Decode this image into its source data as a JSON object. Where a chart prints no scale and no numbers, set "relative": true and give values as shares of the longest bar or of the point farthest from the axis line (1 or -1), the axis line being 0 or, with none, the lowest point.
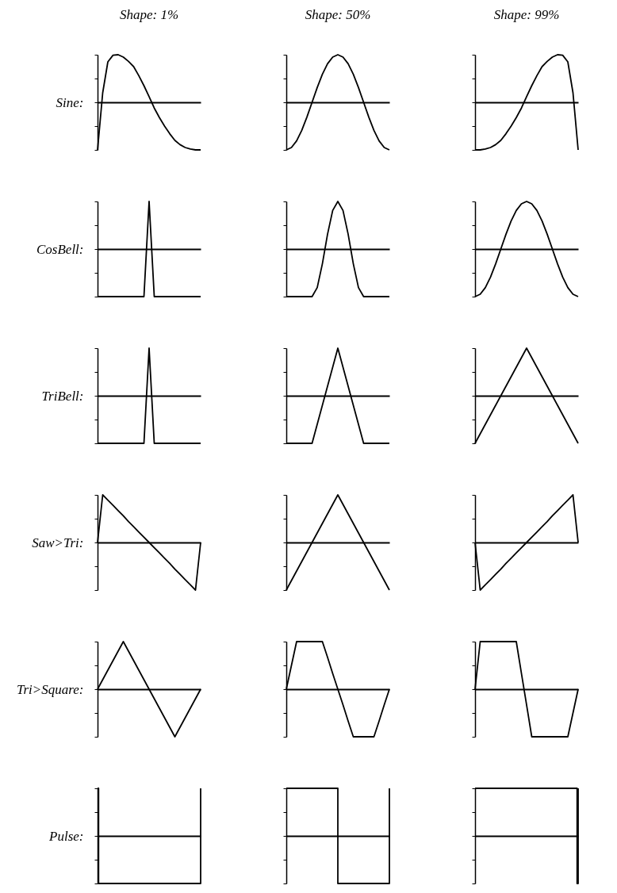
{
  "chart_data": [
    {
      "type": "line",
      "relative": true,
      "title": "Shape: 1%",
      "ylabel": "Sine:",
      "color": "#000000",
      "categories": [
        null,
        null,
        null,
        null,
        null,
        null,
        null,
        null,
        null,
        null,
        null,
        null,
        null,
        null,
        null,
        null,
        null,
        null,
        null,
        null,
        null
      ],
      "values": [
        -1,
        0.2,
        0.85,
        0.99,
        1,
        0.95,
        0.86,
        0.75,
        0.56,
        0.35,
        0.12,
        -0.12,
        -0.32,
        -0.5,
        -0.66,
        -0.8,
        -0.89,
        -0.95,
        -0.98,
        -1,
        -1
      ]
    },
    {
      "type": "line",
      "relative": true,
      "title": "Shape: 50%",
      "color": "#000000",
      "categories": [
        null,
        null,
        null,
        null,
        null,
        null,
        null,
        null,
        null,
        null,
        null,
        null,
        null,
        null,
        null,
        null,
        null,
        null,
        null,
        null,
        null
      ],
      "values": [
        -1,
        -0.95,
        -0.81,
        -0.59,
        -0.31,
        0,
        0.31,
        0.59,
        0.81,
        0.95,
        1,
        0.95,
        0.81,
        0.59,
        0.31,
        0,
        -0.31,
        -0.59,
        -0.81,
        -0.95,
        -1
      ]
    },
    {
      "type": "line",
      "relative": true,
      "title": "Shape: 99%",
      "color": "#000000",
      "categories": [
        null,
        null,
        null,
        null,
        null,
        null,
        null,
        null,
        null,
        null,
        null,
        null,
        null,
        null,
        null,
        null,
        null,
        null,
        null,
        null,
        null
      ],
      "values": [
        -1,
        -1,
        -0.98,
        -0.95,
        -0.89,
        -0.8,
        -0.66,
        -0.5,
        -0.32,
        -0.12,
        0.12,
        0.35,
        0.56,
        0.75,
        0.86,
        0.95,
        1,
        0.99,
        0.85,
        0.2,
        -1
      ]
    },
    {
      "type": "line",
      "relative": true,
      "ylabel": "CosBell:",
      "color": "#000000",
      "categories": [
        null,
        null,
        null,
        null,
        null,
        null,
        null,
        null,
        null,
        null,
        null,
        null,
        null,
        null,
        null,
        null,
        null,
        null,
        null,
        null,
        null
      ],
      "values": [
        -1,
        -1,
        -1,
        -1,
        -1,
        -1,
        -1,
        -1,
        -1,
        -1,
        1,
        -1,
        -1,
        -1,
        -1,
        -1,
        -1,
        -1,
        -1,
        -1,
        -1
      ]
    },
    {
      "type": "line",
      "relative": true,
      "color": "#000000",
      "categories": [
        null,
        null,
        null,
        null,
        null,
        null,
        null,
        null,
        null,
        null,
        null,
        null,
        null,
        null,
        null,
        null,
        null,
        null,
        null,
        null,
        null
      ],
      "values": [
        -1,
        -1,
        -1,
        -1,
        -1,
        -1,
        -0.81,
        -0.31,
        0.31,
        0.81,
        1,
        0.81,
        0.31,
        -0.31,
        -0.81,
        -1,
        -1,
        -1,
        -1,
        -1,
        -1
      ]
    },
    {
      "type": "line",
      "relative": true,
      "color": "#000000",
      "categories": [
        null,
        null,
        null,
        null,
        null,
        null,
        null,
        null,
        null,
        null,
        null,
        null,
        null,
        null,
        null,
        null,
        null,
        null,
        null,
        null,
        null
      ],
      "values": [
        -1,
        -0.95,
        -0.81,
        -0.59,
        -0.31,
        0,
        0.31,
        0.59,
        0.81,
        0.95,
        1,
        0.95,
        0.81,
        0.59,
        0.31,
        0,
        -0.31,
        -0.59,
        -0.81,
        -0.95,
        -1
      ]
    },
    {
      "type": "line",
      "relative": true,
      "ylabel": "TriBell:",
      "color": "#000000",
      "categories": [
        null,
        null,
        null,
        null,
        null,
        null,
        null,
        null,
        null,
        null,
        null,
        null,
        null,
        null,
        null,
        null,
        null,
        null,
        null,
        null,
        null
      ],
      "values": [
        -1,
        -1,
        -1,
        -1,
        -1,
        -1,
        -1,
        -1,
        -1,
        -1,
        1,
        -1,
        -1,
        -1,
        -1,
        -1,
        -1,
        -1,
        -1,
        -1,
        -1
      ]
    },
    {
      "type": "line",
      "relative": true,
      "color": "#000000",
      "categories": [
        null,
        null,
        null,
        null,
        null,
        null,
        null,
        null,
        null,
        null,
        null,
        null,
        null,
        null,
        null,
        null,
        null,
        null,
        null,
        null,
        null
      ],
      "values": [
        -1,
        -1,
        -1,
        -1,
        -1,
        -1,
        -0.6,
        -0.2,
        0.2,
        0.6,
        1,
        0.6,
        0.2,
        -0.2,
        -0.6,
        -1,
        -1,
        -1,
        -1,
        -1,
        -1
      ]
    },
    {
      "type": "line",
      "relative": true,
      "color": "#000000",
      "categories": [
        null,
        null,
        null,
        null,
        null,
        null,
        null,
        null,
        null,
        null,
        null,
        null,
        null,
        null,
        null,
        null,
        null,
        null,
        null,
        null,
        null
      ],
      "values": [
        -1,
        -0.8,
        -0.6,
        -0.4,
        -0.2,
        0,
        0.2,
        0.4,
        0.6,
        0.8,
        1,
        0.8,
        0.6,
        0.4,
        0.2,
        0,
        -0.2,
        -0.4,
        -0.6,
        -0.8,
        -1
      ]
    },
    {
      "type": "line",
      "relative": true,
      "ylabel": "Saw>Tri:",
      "color": "#000000",
      "categories": [
        null,
        null,
        null,
        null,
        null,
        null,
        null,
        null,
        null,
        null,
        null,
        null,
        null,
        null,
        null,
        null,
        null,
        null,
        null,
        null,
        null
      ],
      "values": [
        0,
        1,
        0.89,
        0.78,
        0.67,
        0.56,
        0.44,
        0.33,
        0.22,
        0.11,
        0,
        -0.11,
        -0.22,
        -0.33,
        -0.44,
        -0.56,
        -0.67,
        -0.78,
        -0.89,
        -1,
        0
      ]
    },
    {
      "type": "line",
      "relative": true,
      "color": "#000000",
      "categories": [
        null,
        null,
        null,
        null,
        null,
        null,
        null,
        null,
        null,
        null,
        null,
        null,
        null,
        null,
        null,
        null,
        null,
        null,
        null,
        null,
        null
      ],
      "values": [
        -1,
        -0.8,
        -0.6,
        -0.4,
        -0.2,
        0,
        0.2,
        0.4,
        0.6,
        0.8,
        1,
        0.8,
        0.6,
        0.4,
        0.2,
        0,
        -0.2,
        -0.4,
        -0.6,
        -0.8,
        -1
      ]
    },
    {
      "type": "line",
      "relative": true,
      "color": "#000000",
      "categories": [
        null,
        null,
        null,
        null,
        null,
        null,
        null,
        null,
        null,
        null,
        null,
        null,
        null,
        null,
        null,
        null,
        null,
        null,
        null,
        null,
        null
      ],
      "values": [
        0,
        -1,
        -0.89,
        -0.78,
        -0.67,
        -0.56,
        -0.44,
        -0.33,
        -0.22,
        -0.11,
        0,
        0.11,
        0.22,
        0.33,
        0.44,
        0.56,
        0.67,
        0.78,
        0.89,
        1,
        0
      ]
    },
    {
      "type": "line",
      "relative": true,
      "ylabel": "Tri>Square:",
      "color": "#000000",
      "categories": [
        null,
        null,
        null,
        null,
        null,
        null,
        null,
        null,
        null,
        null,
        null,
        null,
        null,
        null,
        null,
        null,
        null,
        null,
        null,
        null,
        null
      ],
      "values": [
        0,
        0.2,
        0.4,
        0.6,
        0.8,
        1,
        0.8,
        0.6,
        0.4,
        0.2,
        0,
        -0.2,
        -0.4,
        -0.6,
        -0.8,
        -1,
        -0.8,
        -0.6,
        -0.4,
        -0.2,
        0
      ]
    },
    {
      "type": "line",
      "relative": true,
      "color": "#000000",
      "categories": [
        null,
        null,
        null,
        null,
        null,
        null,
        null,
        null,
        null,
        null,
        null,
        null,
        null,
        null,
        null,
        null,
        null,
        null,
        null,
        null,
        null
      ],
      "values": [
        0,
        0.5,
        1,
        1,
        1,
        1,
        1,
        1,
        0.67,
        0.33,
        0,
        -0.33,
        -0.67,
        -1,
        -1,
        -1,
        -1,
        -1,
        -0.67,
        -0.33,
        0
      ]
    },
    {
      "type": "line",
      "relative": true,
      "color": "#000000",
      "categories": [
        null,
        null,
        null,
        null,
        null,
        null,
        null,
        null,
        null,
        null,
        null,
        null,
        null,
        null,
        null,
        null,
        null,
        null,
        null,
        null,
        null
      ],
      "values": [
        0,
        1,
        1,
        1,
        1,
        1,
        1,
        1,
        1,
        0.33,
        -0.33,
        -1,
        -1,
        -1,
        -1,
        -1,
        -1,
        -1,
        -1,
        -0.5,
        0
      ]
    },
    {
      "type": "step",
      "relative": true,
      "ylabel": "Pulse:",
      "color": "#000000",
      "categories": [
        null,
        null,
        null,
        null,
        null,
        null,
        null,
        null,
        null,
        null,
        null,
        null,
        null,
        null,
        null,
        null,
        null,
        null,
        null,
        null,
        null,
        null,
        null,
        null,
        null,
        null,
        null,
        null,
        null,
        null,
        null,
        null,
        null,
        null,
        null,
        null,
        null,
        null,
        null,
        null,
        null,
        null,
        null,
        null,
        null,
        null,
        null,
        null,
        null,
        null,
        null,
        null,
        null,
        null,
        null,
        null,
        null,
        null,
        null,
        null,
        null,
        null,
        null,
        null,
        null,
        null,
        null,
        null,
        null,
        null,
        null,
        null,
        null,
        null,
        null,
        null,
        null,
        null,
        null,
        null,
        null,
        null,
        null,
        null,
        null,
        null,
        null,
        null,
        null,
        null,
        null,
        null,
        null,
        null,
        null,
        null,
        null,
        null,
        null,
        null,
        null
      ],
      "values": [
        1,
        -1,
        -1,
        -1,
        -1,
        -1,
        -1,
        -1,
        -1,
        -1,
        -1,
        -1,
        -1,
        -1,
        -1,
        -1,
        -1,
        -1,
        -1,
        -1,
        -1,
        -1,
        -1,
        -1,
        -1,
        -1,
        -1,
        -1,
        -1,
        -1,
        -1,
        -1,
        -1,
        -1,
        -1,
        -1,
        -1,
        -1,
        -1,
        -1,
        -1,
        -1,
        -1,
        -1,
        -1,
        -1,
        -1,
        -1,
        -1,
        -1,
        -1,
        -1,
        -1,
        -1,
        -1,
        -1,
        -1,
        -1,
        -1,
        -1,
        -1,
        -1,
        -1,
        -1,
        -1,
        -1,
        -1,
        -1,
        -1,
        -1,
        -1,
        -1,
        -1,
        -1,
        -1,
        -1,
        -1,
        -1,
        -1,
        -1,
        -1,
        -1,
        -1,
        -1,
        -1,
        -1,
        -1,
        -1,
        -1,
        -1,
        -1,
        -1,
        -1,
        -1,
        -1,
        -1,
        -1,
        -1,
        -1,
        -1,
        1
      ]
    },
    {
      "type": "step",
      "relative": true,
      "color": "#000000",
      "categories": [
        null,
        null,
        null
      ],
      "values": [
        1,
        -1,
        1
      ]
    },
    {
      "type": "step",
      "relative": true,
      "color": "#000000",
      "categories": [
        null,
        null,
        null,
        null,
        null,
        null,
        null,
        null,
        null,
        null,
        null,
        null,
        null,
        null,
        null,
        null,
        null,
        null,
        null,
        null,
        null,
        null,
        null,
        null,
        null,
        null,
        null,
        null,
        null,
        null,
        null,
        null,
        null,
        null,
        null,
        null,
        null,
        null,
        null,
        null,
        null,
        null,
        null,
        null,
        null,
        null,
        null,
        null,
        null,
        null,
        null,
        null,
        null,
        null,
        null,
        null,
        null,
        null,
        null,
        null,
        null,
        null,
        null,
        null,
        null,
        null,
        null,
        null,
        null,
        null,
        null,
        null,
        null,
        null,
        null,
        null,
        null,
        null,
        null,
        null,
        null,
        null,
        null,
        null,
        null,
        null,
        null,
        null,
        null,
        null,
        null,
        null,
        null,
        null,
        null,
        null,
        null,
        null,
        null,
        null,
        null
      ],
      "values": [
        1,
        1,
        1,
        1,
        1,
        1,
        1,
        1,
        1,
        1,
        1,
        1,
        1,
        1,
        1,
        1,
        1,
        1,
        1,
        1,
        1,
        1,
        1,
        1,
        1,
        1,
        1,
        1,
        1,
        1,
        1,
        1,
        1,
        1,
        1,
        1,
        1,
        1,
        1,
        1,
        1,
        1,
        1,
        1,
        1,
        1,
        1,
        1,
        1,
        1,
        1,
        1,
        1,
        1,
        1,
        1,
        1,
        1,
        1,
        1,
        1,
        1,
        1,
        1,
        1,
        1,
        1,
        1,
        1,
        1,
        1,
        1,
        1,
        1,
        1,
        1,
        1,
        1,
        1,
        1,
        1,
        1,
        1,
        1,
        1,
        1,
        1,
        1,
        1,
        1,
        1,
        1,
        1,
        1,
        1,
        1,
        1,
        1,
        1,
        -1,
        1
      ]
    }
  ]
}
